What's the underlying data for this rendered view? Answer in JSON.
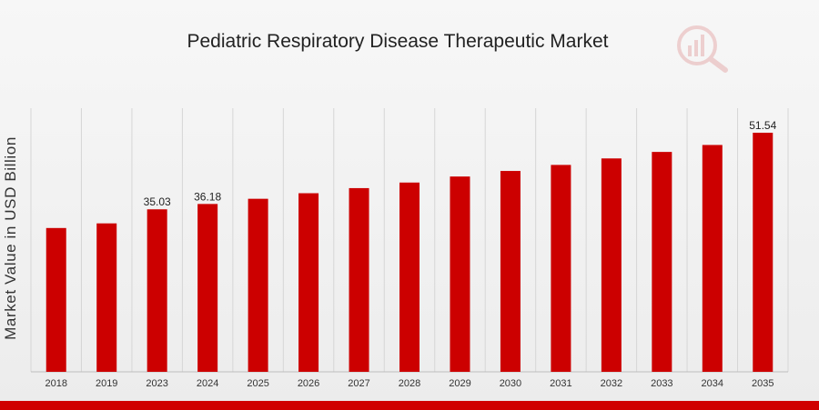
{
  "chart_data": {
    "type": "bar",
    "title": "Pediatric Respiratory Disease Therapeutic Market",
    "ylabel": "Market Value in USD Billion",
    "xlabel": "",
    "categories": [
      "2018",
      "2019",
      "2023",
      "2024",
      "2025",
      "2026",
      "2027",
      "2028",
      "2029",
      "2030",
      "2031",
      "2032",
      "2033",
      "2034",
      "2035"
    ],
    "values": [
      31.0,
      32.0,
      35.03,
      36.18,
      37.3,
      38.5,
      39.6,
      40.8,
      42.1,
      43.3,
      44.6,
      46.0,
      47.4,
      48.9,
      51.54
    ],
    "value_labels": {
      "2023": "35.03",
      "2024": "36.18",
      "2035": "51.54"
    },
    "ylim": [
      0,
      60
    ],
    "bar_color": "#cc0000",
    "grid": "vertical",
    "legend": "none"
  },
  "colors": {
    "accent": "#cc0000",
    "footer": "#d00000"
  },
  "logo_icon": "market-research-logo-icon"
}
